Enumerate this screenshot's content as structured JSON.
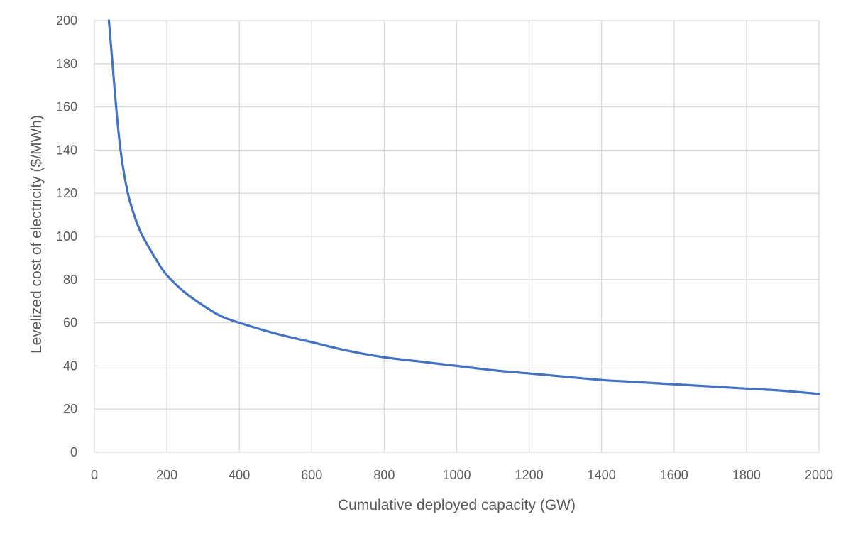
{
  "chart_data": {
    "type": "line",
    "title": "",
    "xlabel": "Cumulative deployed capacity (GW)",
    "ylabel": "Levelized cost of electricity ($/MWh)",
    "xlim": [
      0,
      2000
    ],
    "ylim": [
      0,
      200
    ],
    "x_ticks": [
      "0",
      "200",
      "400",
      "600",
      "800",
      "1000",
      "1200",
      "1400",
      "1600",
      "1800",
      "2000"
    ],
    "y_ticks": [
      "0",
      "20",
      "40",
      "60",
      "80",
      "100",
      "120",
      "140",
      "160",
      "180",
      "200"
    ],
    "grid": true,
    "legend": "none",
    "series": [
      {
        "color": "#4472c4",
        "x": [
          40,
          50,
          60,
          70,
          80,
          90,
          100,
          125,
          150,
          175,
          200,
          250,
          300,
          350,
          400,
          500,
          600,
          700,
          800,
          900,
          1000,
          1100,
          1200,
          1300,
          1400,
          1500,
          1600,
          1700,
          1800,
          1900,
          2000
        ],
        "y": [
          200,
          180,
          160,
          143,
          131,
          122,
          115,
          103,
          95,
          88,
          82,
          74,
          68,
          63,
          60,
          55,
          51,
          47,
          44,
          42,
          40,
          38,
          36.5,
          35,
          33.5,
          32.5,
          31.5,
          30.5,
          29.5,
          28.5,
          27
        ]
      }
    ]
  }
}
